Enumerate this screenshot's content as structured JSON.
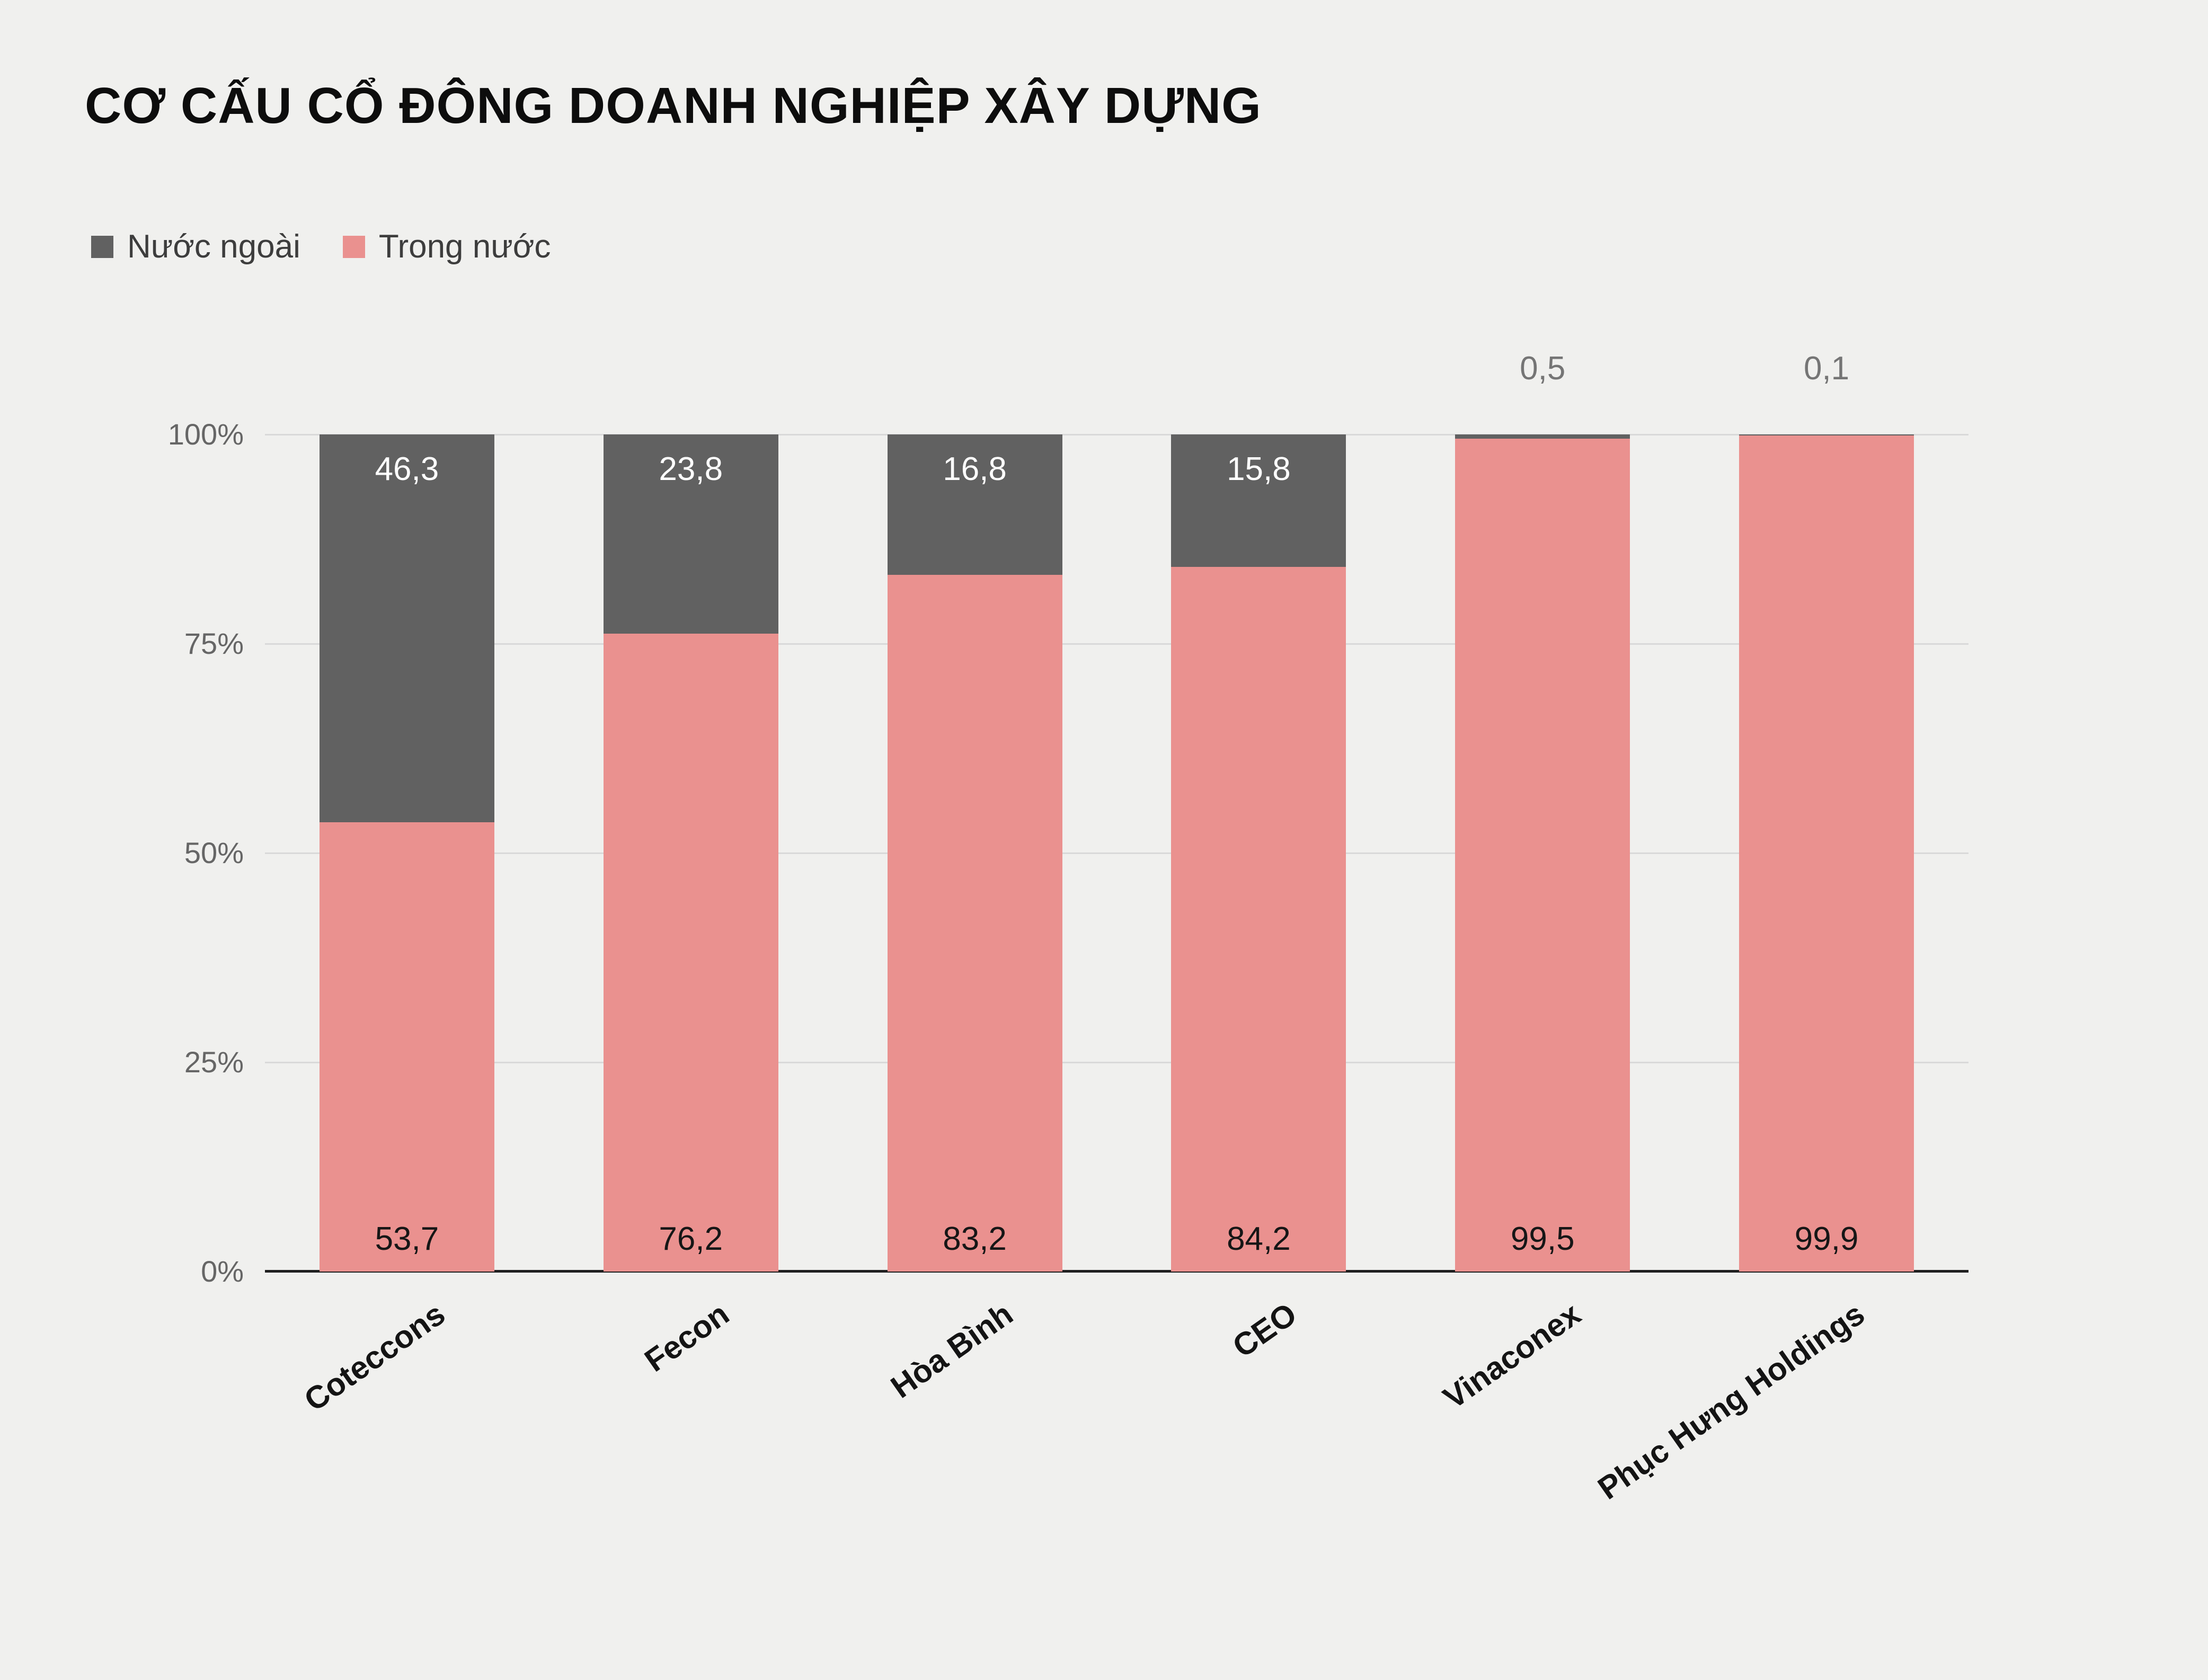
{
  "chart_data": {
    "type": "bar",
    "stacked": true,
    "title": "CƠ CẤU CỔ ĐÔNG DOANH NGHIỆP XÂY DỰNG",
    "categories": [
      "Coteccons",
      "Fecon",
      "Hòa Bình",
      "CEO",
      "Vinaconex",
      "Phục Hưng Holdings"
    ],
    "series": [
      {
        "name": "Nước ngoài",
        "color": "#616161",
        "values": [
          46.3,
          23.8,
          16.8,
          15.8,
          0.5,
          0.1
        ],
        "labels": [
          "46,3",
          "23,8",
          "16,8",
          "15,8",
          "0,5",
          "0,1"
        ]
      },
      {
        "name": "Trong nước",
        "color": "#ea918f",
        "values": [
          53.7,
          76.2,
          83.2,
          84.2,
          99.5,
          99.9
        ],
        "labels": [
          "53,7",
          "76,2",
          "83,2",
          "84,2",
          "99,5",
          "99,9"
        ]
      }
    ],
    "y_ticks": [
      {
        "label": "0%",
        "value": 0
      },
      {
        "label": "25%",
        "value": 25
      },
      {
        "label": "50%",
        "value": 50
      },
      {
        "label": "75%",
        "value": 75
      },
      {
        "label": "100%",
        "value": 100
      }
    ],
    "ylim": [
      0,
      100
    ],
    "grid": true,
    "legend_position": "top-left"
  },
  "colors": {
    "background": "#f0f0ee",
    "grid": "#d9d9d9",
    "axis": "#202020",
    "tick_text": "#666666",
    "outside_label": "#757575",
    "inside_dark_label": "#ffffff",
    "inside_pink_label": "#161616"
  }
}
